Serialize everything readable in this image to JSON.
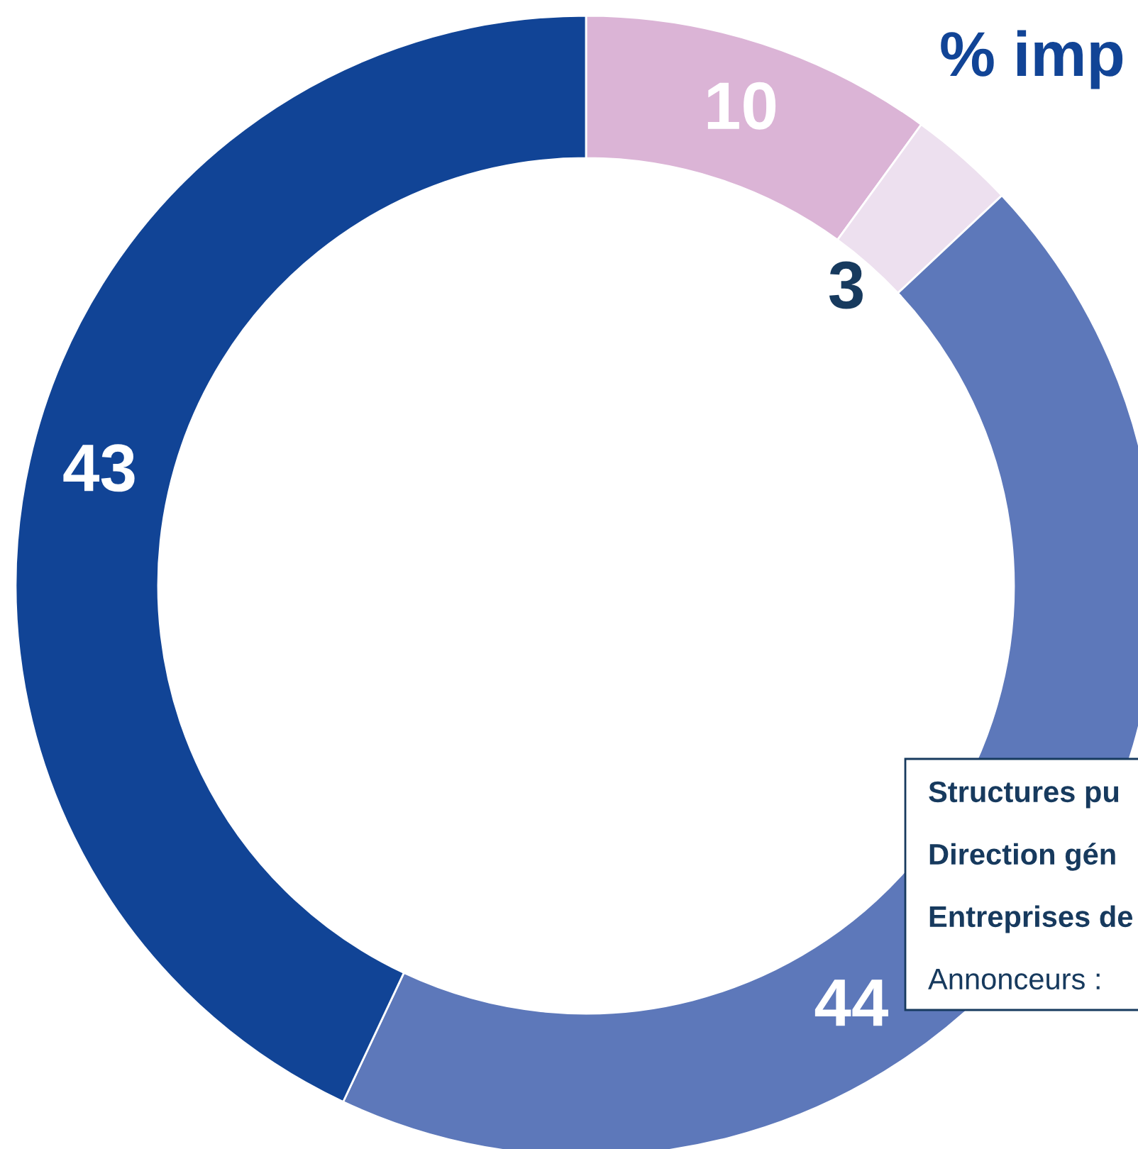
{
  "chart_data": {
    "type": "donut",
    "title": "% imp",
    "categories": [
      null,
      null,
      null,
      null
    ],
    "values": [
      10,
      3,
      44,
      43
    ],
    "colors": [
      "#dbb4d6",
      "#ede0ef",
      "#5d78ba",
      "#114496"
    ],
    "data_labels": true,
    "annotations": [
      "Structures pu",
      "Direction gén",
      "Entreprises de",
      "Annonceurs :"
    ]
  }
}
